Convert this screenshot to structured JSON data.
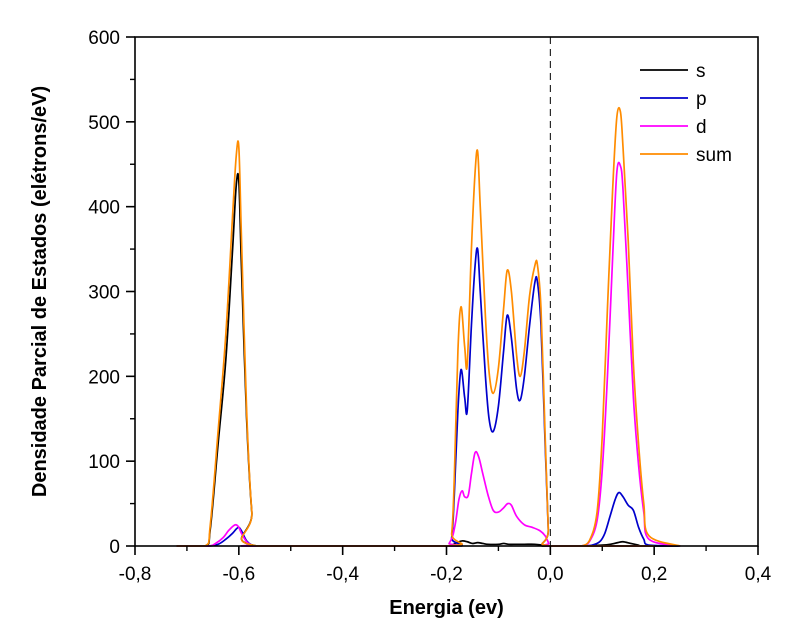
{
  "chart_data": {
    "type": "line",
    "title": "",
    "xlabel": "Energia (ev)",
    "ylabel": "Densidade Parcial de Estados (elétrons/eV)",
    "xlim": [
      -0.8,
      0.4
    ],
    "ylim": [
      0,
      600
    ],
    "x_ticks": [
      -0.8,
      -0.6,
      -0.4,
      -0.2,
      0.0,
      0.2,
      0.4
    ],
    "x_tick_labels": [
      "-0,8",
      "-0,6",
      "-0,4",
      "-0,2",
      "0,0",
      "0,2",
      "0,4"
    ],
    "y_ticks": [
      0,
      100,
      200,
      300,
      400,
      500,
      600
    ],
    "y_tick_labels": [
      "0",
      "100",
      "200",
      "300",
      "400",
      "500",
      "600"
    ],
    "grid": false,
    "legend_position": "top-right",
    "fermi_line_x": 0.0,
    "series": [
      {
        "name": "s",
        "color": "#000000",
        "x": [
          -0.72,
          -0.665,
          -0.655,
          -0.64,
          -0.625,
          -0.612,
          -0.605,
          -0.6,
          -0.595,
          -0.585,
          -0.575,
          -0.565,
          -0.2,
          -0.19,
          -0.18,
          -0.17,
          -0.16,
          -0.15,
          -0.14,
          -0.13,
          -0.12,
          -0.1,
          -0.09,
          -0.08,
          -0.07,
          -0.05,
          -0.03,
          -0.015,
          -0.005,
          0.0,
          0.2,
          0.07,
          0.1,
          0.115,
          0.13,
          0.14,
          0.155,
          0.17,
          0.18,
          0.25
        ],
        "y": [
          0,
          0,
          20,
          120,
          220,
          350,
          425,
          430,
          330,
          150,
          40,
          0,
          0,
          1,
          4,
          6,
          5,
          3,
          4,
          3,
          2,
          2,
          3,
          2,
          2,
          2,
          2,
          1,
          0,
          0,
          0,
          0,
          1,
          2,
          4,
          5,
          3,
          1,
          0,
          0
        ]
      },
      {
        "name": "p",
        "color": "#0000cc",
        "x": [
          -0.72,
          -0.66,
          -0.64,
          -0.625,
          -0.612,
          -0.605,
          -0.6,
          -0.595,
          -0.585,
          -0.575,
          -0.565,
          -0.2,
          -0.19,
          -0.185,
          -0.178,
          -0.172,
          -0.165,
          -0.16,
          -0.152,
          -0.145,
          -0.14,
          -0.135,
          -0.125,
          -0.118,
          -0.11,
          -0.1,
          -0.09,
          -0.083,
          -0.075,
          -0.065,
          -0.058,
          -0.05,
          -0.04,
          -0.03,
          -0.025,
          -0.018,
          -0.01,
          -0.004,
          0.0,
          0.2,
          0.06,
          0.08,
          0.095,
          0.105,
          0.115,
          0.125,
          0.132,
          0.14,
          0.15,
          0.16,
          0.17,
          0.18,
          0.19,
          0.25
        ],
        "y": [
          0,
          0,
          2,
          8,
          15,
          20,
          22,
          18,
          6,
          1,
          0,
          0,
          10,
          60,
          160,
          208,
          175,
          160,
          260,
          330,
          350,
          300,
          200,
          150,
          135,
          165,
          230,
          272,
          245,
          185,
          172,
          200,
          260,
          310,
          312,
          260,
          120,
          20,
          0,
          0,
          0,
          1,
          5,
          15,
          35,
          55,
          63,
          58,
          48,
          42,
          22,
          8,
          1,
          0
        ]
      },
      {
        "name": "d",
        "color": "#ff00ff",
        "x": [
          -0.72,
          -0.66,
          -0.645,
          -0.63,
          -0.62,
          -0.61,
          -0.605,
          -0.6,
          -0.595,
          -0.585,
          -0.575,
          -0.565,
          -0.2,
          -0.195,
          -0.188,
          -0.182,
          -0.176,
          -0.17,
          -0.165,
          -0.158,
          -0.152,
          -0.145,
          -0.138,
          -0.13,
          -0.12,
          -0.11,
          -0.1,
          -0.09,
          -0.082,
          -0.075,
          -0.065,
          -0.05,
          -0.035,
          -0.02,
          -0.01,
          -0.003,
          0.0,
          0.2,
          0.06,
          0.075,
          0.09,
          0.1,
          0.11,
          0.12,
          0.128,
          0.135,
          0.14,
          0.15,
          0.16,
          0.17,
          0.18,
          0.19,
          0.25
        ],
        "y": [
          0,
          0,
          3,
          10,
          18,
          24,
          25,
          22,
          15,
          5,
          1,
          0,
          0,
          3,
          12,
          30,
          55,
          65,
          58,
          60,
          85,
          110,
          105,
          85,
          60,
          42,
          40,
          45,
          50,
          48,
          35,
          25,
          22,
          18,
          12,
          3,
          0,
          0,
          0,
          5,
          30,
          90,
          200,
          340,
          440,
          448,
          420,
          300,
          175,
          95,
          40,
          8,
          0
        ]
      },
      {
        "name": "sum",
        "color": "#ff8c00",
        "x": [
          -0.72,
          -0.665,
          -0.655,
          -0.64,
          -0.625,
          -0.612,
          -0.605,
          -0.6,
          -0.595,
          -0.585,
          -0.575,
          -0.565,
          -0.2,
          -0.19,
          -0.185,
          -0.178,
          -0.172,
          -0.165,
          -0.16,
          -0.152,
          -0.145,
          -0.14,
          -0.135,
          -0.125,
          -0.118,
          -0.11,
          -0.1,
          -0.09,
          -0.083,
          -0.075,
          -0.065,
          -0.058,
          -0.05,
          -0.04,
          -0.03,
          -0.025,
          -0.018,
          -0.01,
          -0.004,
          0.0,
          0.2,
          0.06,
          0.075,
          0.09,
          0.1,
          0.11,
          0.12,
          0.128,
          0.135,
          0.14,
          0.15,
          0.16,
          0.17,
          0.18,
          0.19,
          0.25
        ],
        "y": [
          0,
          0,
          25,
          135,
          250,
          390,
          460,
          470,
          365,
          160,
          40,
          0,
          0,
          15,
          80,
          230,
          282,
          235,
          215,
          350,
          440,
          465,
          400,
          270,
          205,
          180,
          210,
          280,
          325,
          300,
          225,
          200,
          230,
          295,
          330,
          332,
          280,
          130,
          20,
          0,
          0,
          0,
          6,
          40,
          130,
          280,
          420,
          505,
          512,
          470,
          360,
          215,
          120,
          50,
          12,
          0
        ]
      }
    ]
  }
}
